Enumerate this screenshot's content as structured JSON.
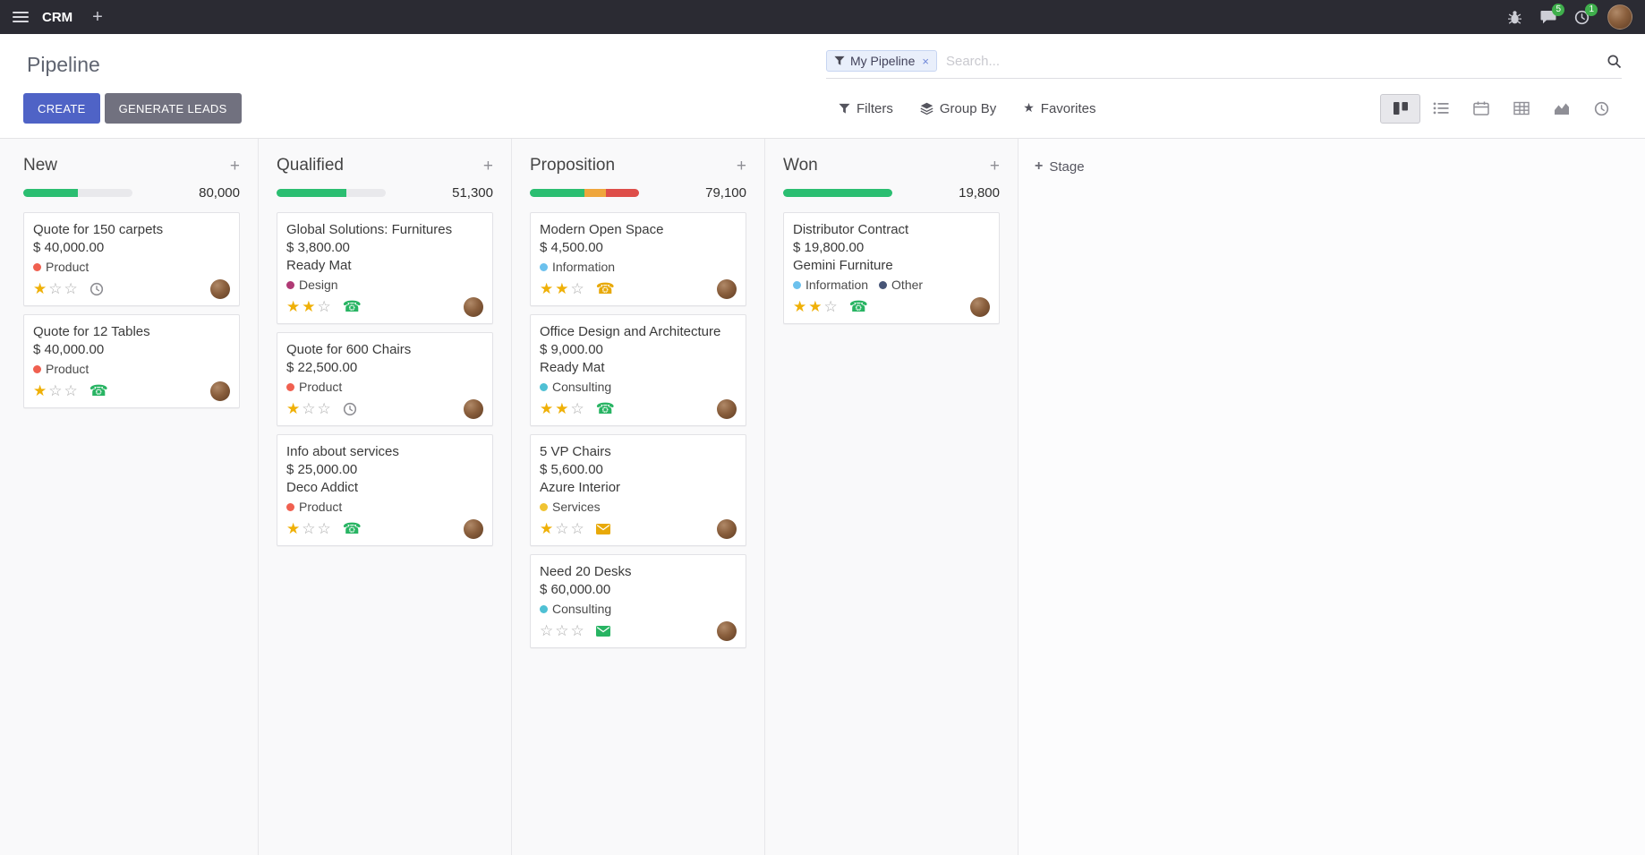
{
  "topbar": {
    "app_name": "CRM",
    "message_badge": "5",
    "activity_badge": "1"
  },
  "control_panel": {
    "title": "Pipeline",
    "create_label": "CREATE",
    "generate_label": "GENERATE LEADS",
    "search_facet": "My Pipeline",
    "search_placeholder": "Search...",
    "filters_label": "Filters",
    "group_by_label": "Group By",
    "favorites_label": "Favorites"
  },
  "kanban": {
    "add_stage_label": "Stage",
    "stars_max": 3,
    "columns": [
      {
        "name": "New",
        "total": "80,000",
        "progress": [
          {
            "status": "success",
            "color": "#2BBE71",
            "pct": 50
          }
        ],
        "cards": [
          {
            "title": "Quote for 150 carpets",
            "amount": "$ 40,000.00",
            "partner": "",
            "tags": [
              {
                "label": "Product",
                "color": "#F06050"
              }
            ],
            "stars": 1,
            "activity": {
              "icon": "clock-icon",
              "color": "#8E8E93"
            }
          },
          {
            "title": "Quote for 12 Tables",
            "amount": "$ 40,000.00",
            "partner": "",
            "tags": [
              {
                "label": "Product",
                "color": "#F06050"
              }
            ],
            "stars": 1,
            "activity": {
              "icon": "phone-icon",
              "color": "#28B463"
            }
          }
        ]
      },
      {
        "name": "Qualified",
        "total": "51,300",
        "progress": [
          {
            "status": "success",
            "color": "#2BBE71",
            "pct": 64
          }
        ],
        "cards": [
          {
            "title": "Global Solutions: Furnitures",
            "amount": "$ 3,800.00",
            "partner": "Ready Mat",
            "tags": [
              {
                "label": "Design",
                "color": "#B03A75"
              }
            ],
            "stars": 2,
            "activity": {
              "icon": "phone-icon",
              "color": "#28B463"
            }
          },
          {
            "title": "Quote for 600 Chairs",
            "amount": "$ 22,500.00",
            "partner": "",
            "tags": [
              {
                "label": "Product",
                "color": "#F06050"
              }
            ],
            "stars": 1,
            "activity": {
              "icon": "clock-icon",
              "color": "#8E8E93"
            }
          },
          {
            "title": "Info about services",
            "amount": "$ 25,000.00",
            "partner": "Deco Addict",
            "tags": [
              {
                "label": "Product",
                "color": "#F06050"
              }
            ],
            "stars": 1,
            "activity": {
              "icon": "phone-icon",
              "color": "#28B463"
            }
          }
        ]
      },
      {
        "name": "Proposition",
        "total": "79,100",
        "progress": [
          {
            "status": "success",
            "color": "#2BBE71",
            "pct": 50
          },
          {
            "status": "warning",
            "color": "#EFA63C",
            "pct": 20
          },
          {
            "status": "danger",
            "color": "#DE4E49",
            "pct": 30
          }
        ],
        "cards": [
          {
            "title": "Modern Open Space",
            "amount": "$ 4,500.00",
            "partner": "",
            "tags": [
              {
                "label": "Information",
                "color": "#6CC1ED"
              }
            ],
            "stars": 2,
            "activity": {
              "icon": "phone-icon",
              "color": "#E8A909"
            }
          },
          {
            "title": "Office Design and Architecture",
            "amount": "$ 9,000.00",
            "partner": "Ready Mat",
            "tags": [
              {
                "label": "Consulting",
                "color": "#4FC0D4"
              }
            ],
            "stars": 2,
            "activity": {
              "icon": "phone-icon",
              "color": "#28B463"
            }
          },
          {
            "title": "5 VP Chairs",
            "amount": "$ 5,600.00",
            "partner": "Azure Interior",
            "tags": [
              {
                "label": "Services",
                "color": "#F0C332"
              }
            ],
            "stars": 1,
            "activity": {
              "icon": "envelope-icon",
              "color": "#E8A909"
            }
          },
          {
            "title": "Need 20 Desks",
            "amount": "$ 60,000.00",
            "partner": "",
            "tags": [
              {
                "label": "Consulting",
                "color": "#4FC0D4"
              }
            ],
            "stars": 0,
            "activity": {
              "icon": "envelope-icon",
              "color": "#28B463"
            }
          }
        ]
      },
      {
        "name": "Won",
        "total": "19,800",
        "progress": [
          {
            "status": "success",
            "color": "#2BBE71",
            "pct": 100
          }
        ],
        "cards": [
          {
            "title": "Distributor Contract",
            "amount": "$ 19,800.00",
            "partner": "Gemini Furniture",
            "tags": [
              {
                "label": "Information",
                "color": "#6CC1ED"
              },
              {
                "label": "Other",
                "color": "#475577"
              }
            ],
            "stars": 2,
            "activity": {
              "icon": "phone-icon",
              "color": "#28B463"
            }
          }
        ]
      }
    ]
  }
}
